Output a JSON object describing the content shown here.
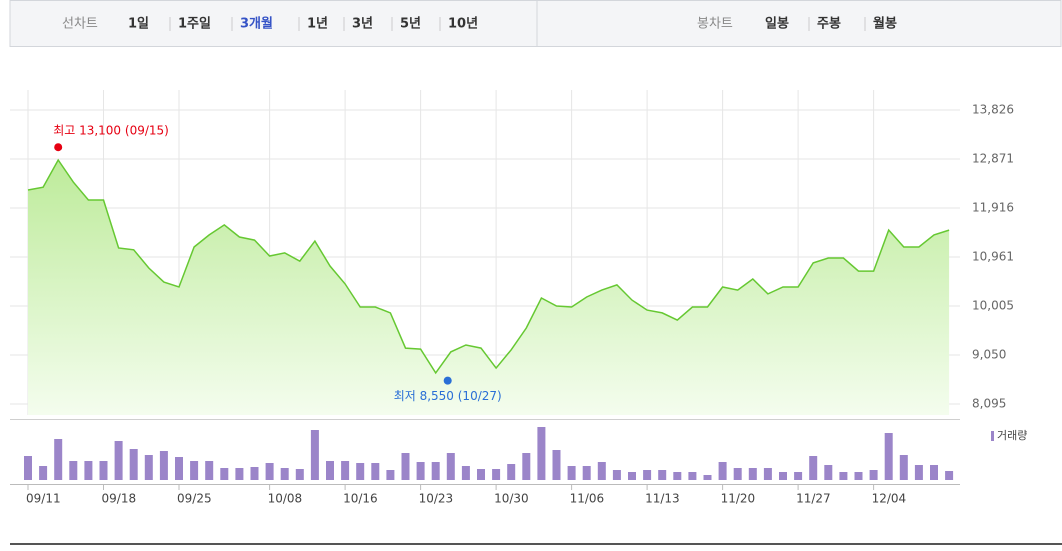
{
  "tabs": {
    "line_chart_label": "선차트",
    "periods": [
      "1일",
      "1주일",
      "3개월",
      "1년",
      "3년",
      "5년",
      "10년"
    ],
    "selected_period": 2,
    "candle_chart_label": "봉차트",
    "candle_periods": [
      "일봉",
      "주봉",
      "월봉"
    ]
  },
  "chart_data": {
    "type": "line",
    "categories": [
      "09/11",
      null,
      null,
      null,
      null,
      "09/18",
      null,
      null,
      null,
      null,
      "09/25",
      null,
      null,
      null,
      null,
      null,
      "10/08",
      null,
      null,
      null,
      null,
      "10/16",
      null,
      null,
      null,
      null,
      "10/23",
      null,
      null,
      null,
      null,
      "10/30",
      null,
      null,
      null,
      null,
      "11/06",
      null,
      null,
      null,
      null,
      "11/13",
      null,
      null,
      null,
      null,
      "11/20",
      null,
      null,
      null,
      null,
      "11/27",
      null,
      null,
      null,
      null,
      "12/04",
      null,
      null,
      null,
      null,
      null
    ],
    "values": [
      12266,
      12320,
      12850,
      12420,
      12070,
      12070,
      11135,
      11100,
      10745,
      10470,
      10375,
      11155,
      11390,
      11585,
      11350,
      11290,
      10980,
      11040,
      10880,
      11270,
      10785,
      10435,
      9985,
      9985,
      9870,
      9185,
      9165,
      8700,
      9110,
      9245,
      9185,
      8795,
      9150,
      9575,
      10160,
      10005,
      9985,
      10180,
      10315,
      10415,
      10120,
      9925,
      9870,
      9730,
      9985,
      9985,
      10375,
      10315,
      10530,
      10240,
      10375,
      10375,
      10845,
      10940,
      10940,
      10685,
      10685,
      11485,
      11155,
      11155,
      11390,
      11485
    ],
    "color": "#66c832",
    "ylim": [
      7880,
      14215
    ],
    "yticks": [
      {
        "value": 8095,
        "label": "8,095"
      },
      {
        "value": 9050,
        "label": "9,050"
      },
      {
        "value": 10005,
        "label": "10,005"
      },
      {
        "value": 10961,
        "label": "10,961"
      },
      {
        "value": 11916,
        "label": "11,916"
      },
      {
        "value": 12871,
        "label": "12,871"
      },
      {
        "value": 13826,
        "label": "13,826"
      }
    ],
    "grid": true,
    "high_annotation": {
      "text": "최고 13,100 (09/15)",
      "value": 13100,
      "color": "#e60012"
    },
    "low_annotation": {
      "text": "최저 8,550 (10/27)",
      "value": 8550,
      "color": "#2a6fd6"
    },
    "volume": {
      "name": "거래량",
      "color": "#9b85c9",
      "ylim": [
        0,
        56
      ],
      "values": [
        24,
        14,
        41,
        19,
        19,
        19,
        39,
        31,
        25,
        29,
        23,
        19,
        19,
        12,
        12,
        13,
        17,
        12,
        11,
        50,
        19,
        19,
        17,
        17,
        10,
        27,
        18,
        18,
        27,
        14,
        11,
        11,
        16,
        27,
        53,
        30,
        14,
        14,
        18,
        10,
        8,
        10,
        10,
        8,
        8,
        5,
        18,
        12,
        12,
        12,
        8,
        8,
        24,
        15,
        8,
        8,
        10,
        47,
        25,
        15,
        15,
        9
      ]
    }
  }
}
